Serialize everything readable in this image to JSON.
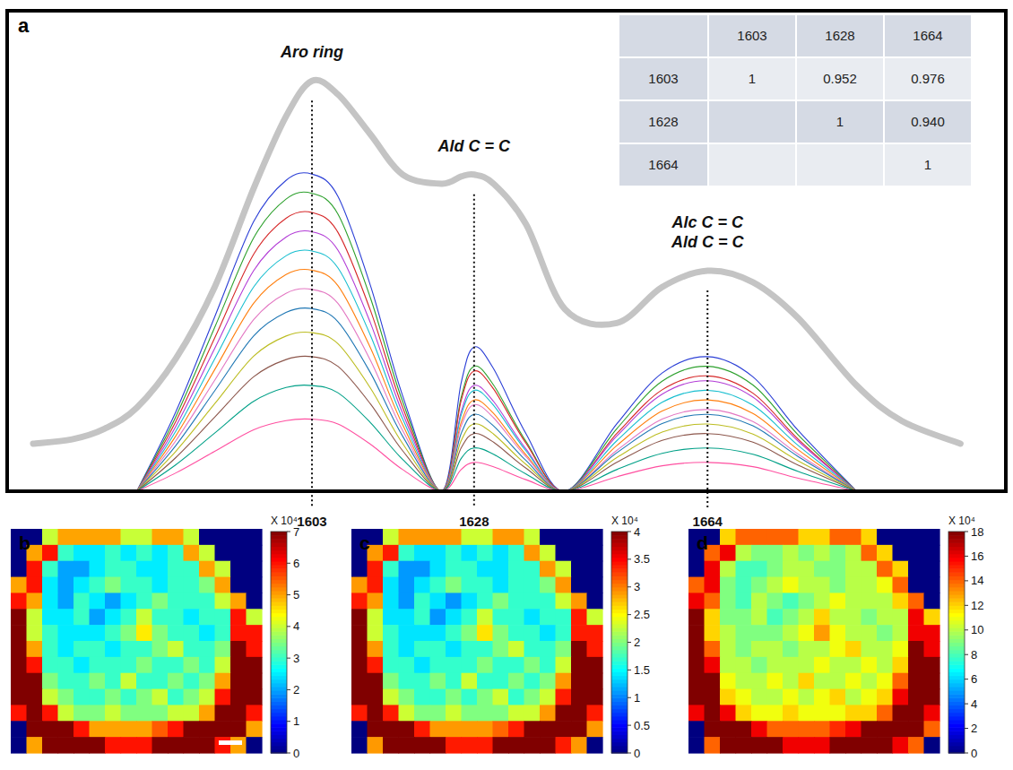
{
  "chart_data": [
    {
      "type": "line",
      "panel_label": "a",
      "x": [
        1560,
        1566,
        1571,
        1576,
        1582,
        1588,
        1594,
        1599,
        1603,
        1607,
        1612,
        1617,
        1623,
        1626,
        1628,
        1631,
        1636,
        1642,
        1650,
        1657,
        1664,
        1671,
        1678,
        1687,
        1694,
        1703
      ],
      "xlim": [
        1556,
        1710
      ],
      "ylim": [
        0,
        100
      ],
      "xticks": [
        1603,
        1628,
        1664
      ],
      "tick_labels": "x",
      "annotations": [
        {
          "x": 1603,
          "lines": [
            "Aro ring"
          ]
        },
        {
          "x": 1628,
          "lines": [
            "Ald C = C"
          ]
        },
        {
          "x": 1664,
          "lines": [
            "Alc C = C",
            "Ald C = C"
          ]
        }
      ],
      "series": [
        {
          "color": "#2b3fd6",
          "values": [
            null,
            null,
            null,
            0,
            16.5,
            36.3,
            56.1,
            64.7,
            66,
            61.4,
            42.9,
            19.8,
            0,
            22.5,
            30,
            25.5,
            12,
            0,
            14,
            24.6,
            28,
            23.8,
            12.6,
            0,
            null,
            null
          ]
        },
        {
          "color": "#2ca02c",
          "values": [
            null,
            null,
            null,
            0,
            15.5,
            34.1,
            52.7,
            60.8,
            62,
            57.7,
            40.3,
            18.6,
            0,
            19.5,
            26,
            22.1,
            10.4,
            0,
            13,
            22.9,
            26,
            22.1,
            11.7,
            0,
            null,
            null
          ]
        },
        {
          "color": "#d62728",
          "values": [
            null,
            null,
            null,
            0,
            14.5,
            31.9,
            49.3,
            56.8,
            58,
            53.9,
            37.7,
            17.4,
            0,
            18.8,
            25,
            21.3,
            10,
            0,
            12,
            21.1,
            24,
            20.4,
            10.8,
            0,
            null,
            null
          ]
        },
        {
          "color": "#b23bd6",
          "values": [
            null,
            null,
            null,
            0,
            13.5,
            29.7,
            45.9,
            52.9,
            54,
            50.2,
            35.1,
            16.2,
            0,
            16.5,
            22,
            18.7,
            8.8,
            0,
            11.5,
            20.2,
            23,
            19.6,
            10.4,
            0,
            null,
            null
          ]
        },
        {
          "color": "#17becf",
          "values": [
            null,
            null,
            null,
            0,
            12.5,
            27.5,
            42.5,
            49,
            50,
            46.5,
            32.5,
            15,
            0,
            15.8,
            21,
            17.9,
            8.4,
            0,
            10.5,
            18.5,
            21,
            17.9,
            9.5,
            0,
            null,
            null
          ]
        },
        {
          "color": "#ff7f0e",
          "values": [
            null,
            null,
            null,
            0,
            11.5,
            25.3,
            39.1,
            45.1,
            46,
            42.8,
            29.9,
            13.8,
            0,
            14.3,
            19,
            16.2,
            7.6,
            0,
            9.5,
            16.7,
            19,
            16.2,
            8.6,
            0,
            null,
            null
          ]
        },
        {
          "color": "#e377c2",
          "values": [
            null,
            null,
            null,
            0,
            10.5,
            23.1,
            35.7,
            41.2,
            42,
            39.1,
            27.3,
            12.6,
            0,
            13.5,
            18,
            15.3,
            7.2,
            0,
            8.5,
            15,
            17,
            14.5,
            7.7,
            0,
            null,
            null
          ]
        },
        {
          "color": "#1f77b4",
          "values": [
            null,
            null,
            null,
            0,
            9.5,
            20.9,
            32.3,
            37.2,
            38,
            35.3,
            24.7,
            11.4,
            0,
            12,
            16,
            13.6,
            6.4,
            0,
            8,
            14.1,
            16,
            13.6,
            7.2,
            0,
            null,
            null
          ]
        },
        {
          "color": "#bcbd22",
          "values": [
            null,
            null,
            null,
            0,
            8.3,
            18.2,
            28.1,
            32.3,
            33,
            30.7,
            21.5,
            9.9,
            0,
            10.5,
            14,
            11.9,
            5.6,
            0,
            7,
            12.3,
            14,
            11.9,
            6.3,
            0,
            null,
            null
          ]
        },
        {
          "color": "#8c564b",
          "values": [
            null,
            null,
            null,
            0,
            7,
            15.4,
            23.8,
            27.4,
            28,
            26,
            18.2,
            8.4,
            0,
            9,
            12,
            10.2,
            4.8,
            0,
            6,
            10.6,
            12,
            10.2,
            5.4,
            0,
            null,
            null
          ]
        },
        {
          "color": "#00a087",
          "values": [
            null,
            null,
            null,
            0,
            5.5,
            12.1,
            18.7,
            21.6,
            22,
            20.5,
            14.3,
            6.6,
            0,
            6.8,
            9,
            7.7,
            3.6,
            0,
            4.5,
            7.9,
            9,
            7.7,
            4.1,
            0,
            null,
            null
          ]
        },
        {
          "color": "#ff4fa0",
          "values": [
            null,
            null,
            null,
            0,
            3.8,
            8.3,
            12.8,
            14.7,
            15,
            14,
            9.8,
            4.5,
            0,
            4.5,
            6,
            5.1,
            2.4,
            0,
            3,
            5.3,
            6,
            5.1,
            2.7,
            0,
            null,
            null
          ]
        },
        {
          "color": "#c4c4c4",
          "line_style": "bold",
          "values": [
            9.9,
            10.8,
            13,
            17.4,
            27.6,
            42.5,
            63,
            78,
            85.4,
            82.6,
            74.3,
            65.9,
            64,
            65.5,
            65.9,
            64,
            55.6,
            37.9,
            35,
            42.5,
            45.9,
            43.5,
            36,
            22,
            14.6,
            9.9
          ]
        }
      ]
    },
    {
      "type": "heatmap",
      "panel_label": "b",
      "colorbar_label": "X 10⁴",
      "color_range": [
        0,
        7
      ],
      "color_ticks": [
        0,
        1,
        2,
        3,
        4,
        5,
        6,
        7
      ],
      "cells": [
        [
          0,
          0,
          4,
          5,
          5,
          5,
          5,
          4,
          4,
          5,
          5,
          4,
          0,
          0,
          0,
          0
        ],
        [
          0,
          5,
          6,
          3,
          2.5,
          2.5,
          3,
          2.5,
          3,
          2.5,
          3,
          5,
          4,
          0,
          0,
          0
        ],
        [
          0,
          6,
          3,
          2,
          2,
          2.5,
          3,
          3,
          2.5,
          2.5,
          3,
          3,
          5,
          4,
          0,
          0
        ],
        [
          5,
          6,
          2.5,
          2,
          2.5,
          3,
          3.5,
          3,
          3,
          2.5,
          3,
          3,
          3.5,
          5,
          0,
          0
        ],
        [
          6,
          5,
          2.5,
          2,
          3,
          2.5,
          2,
          2.5,
          3,
          3.5,
          3,
          3,
          3,
          4,
          5,
          0
        ],
        [
          7,
          4,
          2.5,
          2.5,
          3,
          2,
          2.5,
          3,
          4,
          3,
          3,
          2.5,
          3,
          3,
          6,
          4
        ],
        [
          7,
          4,
          3,
          2.5,
          2.5,
          2.5,
          3,
          3.5,
          4.5,
          3.5,
          3,
          3,
          2.5,
          3,
          6,
          6
        ],
        [
          7,
          5,
          3,
          2.5,
          3,
          3,
          2.5,
          3,
          3,
          3.5,
          4,
          3,
          3,
          3.5,
          7,
          6
        ],
        [
          7,
          6,
          3,
          3,
          2.5,
          3,
          3,
          3,
          3.5,
          3,
          3,
          3.5,
          3,
          4,
          7,
          7
        ],
        [
          7,
          7,
          3.5,
          3,
          3,
          3.5,
          3,
          4,
          3,
          3,
          3.5,
          3,
          3.5,
          5,
          7,
          7
        ],
        [
          7,
          7,
          4,
          3.5,
          3,
          3,
          3.5,
          3,
          3.5,
          4,
          3,
          3.5,
          4,
          6,
          7,
          7
        ],
        [
          6,
          7,
          6,
          4,
          3.5,
          3.5,
          4,
          3.5,
          3.5,
          3.5,
          4,
          4,
          5,
          7,
          7,
          6
        ],
        [
          0,
          7,
          7,
          7,
          6,
          5,
          5,
          5,
          5,
          5.5,
          6,
          7,
          7,
          7,
          7,
          5
        ],
        [
          0,
          5,
          7,
          7,
          7,
          7,
          6,
          6,
          6,
          7,
          7,
          7,
          7,
          6,
          5,
          0
        ]
      ]
    },
    {
      "type": "heatmap",
      "panel_label": "c",
      "colorbar_label": "X 10⁴",
      "color_range": [
        0,
        4
      ],
      "color_ticks": [
        0,
        0.5,
        1,
        1.5,
        2,
        2.5,
        3,
        3.5,
        4
      ],
      "cells": [
        [
          0,
          0,
          2.3,
          2.9,
          2.9,
          2.9,
          2.9,
          2.3,
          2.3,
          2.9,
          2.9,
          2.3,
          0,
          0,
          0,
          0
        ],
        [
          0,
          2.9,
          3.4,
          1.7,
          1.4,
          1.4,
          1.7,
          1.4,
          1.7,
          1.4,
          1.7,
          2.9,
          2.3,
          0,
          0,
          0
        ],
        [
          0,
          3.4,
          1.7,
          1.1,
          1.1,
          1.4,
          1.7,
          1.7,
          1.4,
          1.4,
          1.7,
          1.7,
          2.9,
          2.3,
          0,
          0
        ],
        [
          2.9,
          3.4,
          1.4,
          1.1,
          1.4,
          1.7,
          2,
          1.7,
          1.7,
          1.4,
          1.7,
          1.7,
          2,
          2.9,
          0,
          0
        ],
        [
          3.4,
          2.9,
          1.4,
          1.1,
          1.7,
          1.4,
          1.1,
          1.4,
          1.7,
          2,
          1.7,
          1.7,
          1.7,
          2.3,
          2.9,
          0
        ],
        [
          4,
          2.3,
          1.4,
          1.4,
          1.7,
          1.1,
          1.4,
          1.7,
          2.3,
          1.7,
          1.7,
          1.4,
          1.7,
          1.7,
          3.4,
          2.3
        ],
        [
          4,
          2.3,
          1.7,
          1.4,
          1.4,
          1.4,
          1.7,
          2,
          2.6,
          2,
          1.7,
          1.7,
          1.4,
          1.7,
          3.4,
          3.4
        ],
        [
          4,
          2.9,
          1.7,
          1.4,
          1.7,
          1.7,
          1.4,
          1.7,
          1.7,
          2,
          2.3,
          1.7,
          1.7,
          2,
          4,
          3.4
        ],
        [
          4,
          3.4,
          1.7,
          1.7,
          1.4,
          1.7,
          1.7,
          1.7,
          2,
          1.7,
          1.7,
          2,
          1.7,
          2.3,
          4,
          4
        ],
        [
          4,
          4,
          2,
          1.7,
          1.7,
          2,
          1.7,
          2.3,
          1.7,
          1.7,
          2,
          1.7,
          2,
          2.9,
          4,
          4
        ],
        [
          4,
          4,
          2.3,
          2,
          1.7,
          1.7,
          2,
          1.7,
          2,
          2.3,
          1.7,
          2,
          2.3,
          3.4,
          4,
          4
        ],
        [
          3.4,
          4,
          3.4,
          2.3,
          2,
          2,
          2.3,
          2,
          2,
          2,
          2.3,
          2.3,
          2.9,
          4,
          4,
          3.4
        ],
        [
          0,
          4,
          4,
          4,
          3.4,
          2.9,
          2.9,
          2.9,
          2.9,
          3.1,
          3.4,
          4,
          4,
          4,
          4,
          2.9
        ],
        [
          0,
          2.9,
          4,
          4,
          4,
          4,
          3.4,
          3.4,
          3.4,
          4,
          4,
          4,
          4,
          3.4,
          2.9,
          0
        ]
      ]
    },
    {
      "type": "heatmap",
      "panel_label": "d",
      "colorbar_label": "X 10⁴",
      "color_range": [
        0,
        18
      ],
      "color_ticks": [
        0,
        2,
        4,
        6,
        8,
        10,
        12,
        14,
        16,
        18
      ],
      "cells": [
        [
          0,
          0,
          12,
          14,
          14,
          14,
          14,
          12,
          12,
          14,
          14,
          12,
          0,
          0,
          0,
          0
        ],
        [
          0,
          14,
          16,
          10,
          9,
          9,
          10,
          9,
          10,
          9,
          10,
          14,
          12,
          0,
          0,
          0
        ],
        [
          0,
          16,
          10,
          8,
          8,
          9,
          10,
          10,
          9,
          9,
          10,
          10,
          14,
          12,
          0,
          0
        ],
        [
          14,
          16,
          9,
          8,
          9,
          10,
          11,
          10,
          10,
          9,
          10,
          10,
          11,
          14,
          0,
          0
        ],
        [
          16,
          14,
          9,
          8,
          10,
          9,
          8,
          9,
          10,
          11,
          10,
          10,
          10,
          12,
          14,
          0
        ],
        [
          18,
          12,
          9,
          9,
          10,
          8,
          9,
          10,
          12,
          10,
          10,
          9,
          10,
          10,
          16,
          12
        ],
        [
          18,
          12,
          10,
          9,
          9,
          9,
          10,
          11,
          13,
          11,
          10,
          10,
          9,
          10,
          16,
          16
        ],
        [
          18,
          14,
          10,
          9,
          10,
          10,
          9,
          10,
          10,
          11,
          12,
          10,
          10,
          11,
          18,
          16
        ],
        [
          18,
          16,
          10,
          10,
          9,
          10,
          10,
          10,
          11,
          10,
          10,
          11,
          10,
          12,
          18,
          18
        ],
        [
          18,
          18,
          11,
          10,
          10,
          11,
          10,
          12,
          10,
          10,
          11,
          10,
          11,
          14,
          18,
          18
        ],
        [
          18,
          18,
          12,
          11,
          10,
          10,
          11,
          10,
          11,
          12,
          10,
          11,
          12,
          16,
          18,
          18
        ],
        [
          16,
          18,
          16,
          12,
          11,
          11,
          12,
          11,
          11,
          11,
          12,
          12,
          14,
          18,
          18,
          16
        ],
        [
          0,
          18,
          18,
          18,
          16,
          14,
          14,
          14,
          14,
          15,
          16,
          18,
          18,
          18,
          18,
          14
        ],
        [
          0,
          14,
          18,
          18,
          18,
          18,
          16,
          16,
          16,
          18,
          18,
          18,
          18,
          16,
          14,
          0
        ]
      ]
    }
  ],
  "table": {
    "columns": [
      null,
      "1603",
      "1628",
      "1664"
    ],
    "rows": [
      [
        "1603",
        "1",
        "0.952",
        "0.976"
      ],
      [
        "1628",
        null,
        "1",
        "0.940"
      ],
      [
        "1664",
        null,
        null,
        "1"
      ]
    ]
  }
}
